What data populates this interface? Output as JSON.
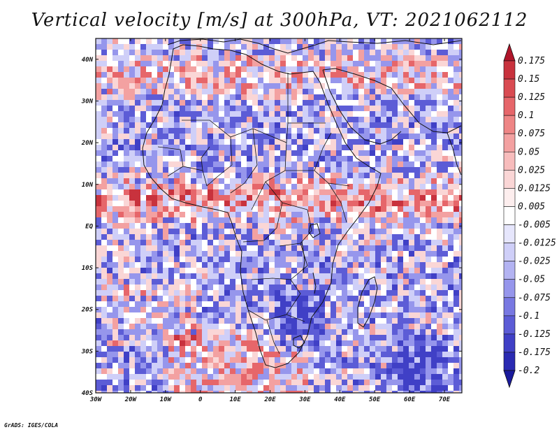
{
  "title": "Vertical velocity [m/s] at 300hPa, VT: 2021062112",
  "credit": "GrADS: IGES/COLA",
  "map": {
    "lon_range": [
      -30,
      75
    ],
    "lat_range": [
      -40,
      45
    ],
    "lat_labels": [
      "40N",
      "30N",
      "20N",
      "10N",
      "EQ",
      "10S",
      "20S",
      "30S",
      "40S"
    ],
    "lon_labels": [
      "30W",
      "20W",
      "10W",
      "0",
      "10E",
      "20E",
      "30E",
      "40E",
      "50E",
      "60E",
      "70E"
    ]
  },
  "colorbar": {
    "labels": [
      "0.175",
      "0.15",
      "0.125",
      "0.1",
      "0.075",
      "0.05",
      "0.025",
      "0.0125",
      "0.005",
      "-0.005",
      "-0.0125",
      "-0.025",
      "-0.05",
      "-0.075",
      "-0.1",
      "-0.125",
      "-0.175",
      "-0.2"
    ],
    "colors": [
      "#b0152a",
      "#c8323d",
      "#d94b52",
      "#e6666a",
      "#ee8585",
      "#f3a1a1",
      "#f7bcbc",
      "#fad6d6",
      "#fdeeee",
      "#ffffff",
      "#e6e6fc",
      "#cfcff8",
      "#b3b3f2",
      "#9696ec",
      "#7878e2",
      "#5c5cd6",
      "#4040c6",
      "#2a2ab2",
      "#1a1a9c"
    ]
  }
}
